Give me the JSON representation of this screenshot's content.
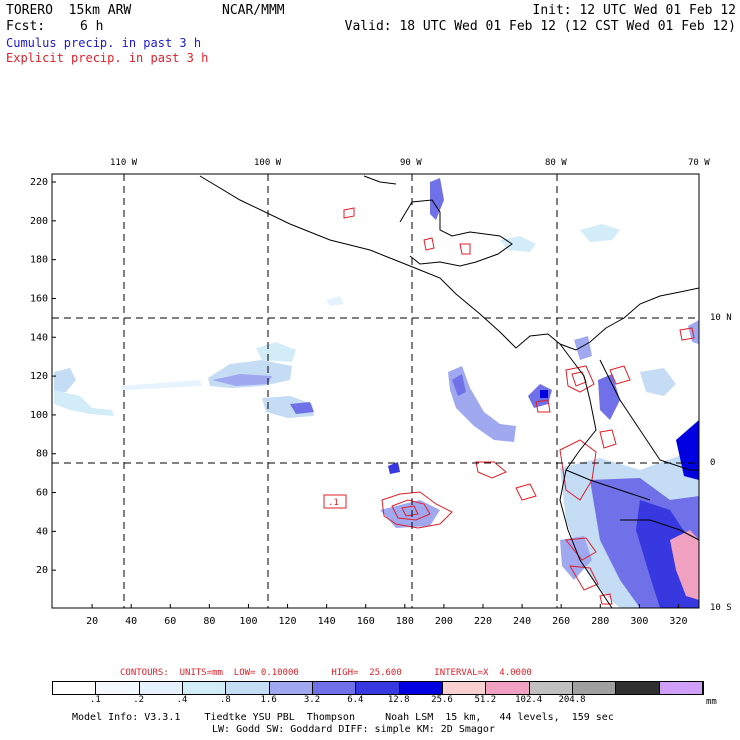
{
  "header": {
    "model": "TORERO  15km ARW",
    "org": "NCAR/MMM",
    "init": "Init: 12 UTC Wed 01 Feb 12",
    "fcst_label": "Fcst:",
    "fcst_value": "6 h",
    "valid": "Valid: 18 UTC Wed 01 Feb 12 (12 CST Wed 01 Feb 12)"
  },
  "fields": {
    "cumulus": "Cumulus precip. in past 3 h",
    "explicit": "Explicit precip. in past 3 h",
    "cumulus_color": "#1a1ad0",
    "explicit_color": "#e0202a"
  },
  "map": {
    "lon_labels": [
      "110 W",
      "100 W",
      "90 W",
      "80 W",
      "70 W"
    ],
    "lat_labels": [
      "10 N",
      "0",
      "10 S"
    ],
    "y_ticks": [
      "20",
      "40",
      "60",
      "80",
      "100",
      "120",
      "140",
      "160",
      "180",
      "200",
      "220"
    ],
    "x_ticks": [
      "20",
      "40",
      "60",
      "80",
      "100",
      "120",
      "140",
      "160",
      "180",
      "200",
      "220",
      "240",
      "260",
      "280",
      "300",
      "320"
    ],
    "contour_label": ".1"
  },
  "contours": {
    "text": "CONTOURS:  UNITS=mm  LOW= 0.10000      HIGH=  25.600      INTERVAL=X  4.0000"
  },
  "colorbar": {
    "colors": [
      "#ffffff",
      "#f4f8ff",
      "#e6f2ff",
      "#d2ecf8",
      "#c4dcf4",
      "#a0a8f0",
      "#7070e8",
      "#3838e0",
      "#0000e0",
      "#f8d0d0",
      "#f0a0c0",
      "#c0c0c0",
      "#a0a0a0",
      "#303030",
      "#d0a0f8"
    ],
    "labels": [
      ".1",
      ".2",
      ".4",
      ".8",
      "1.6",
      "3.2",
      "6.4",
      "12.8",
      "25.6",
      "51.2",
      "102.4",
      "204.8"
    ],
    "unit": "mm"
  },
  "footer": {
    "line1": "Model Info: V3.3.1    Tiedtke YSU PBL  Thompson     Noah LSM  15 km,   44 levels,  159 sec",
    "line2": "LW: Godd SW: Goddard DIFF: simple KM: 2D Smagor"
  }
}
